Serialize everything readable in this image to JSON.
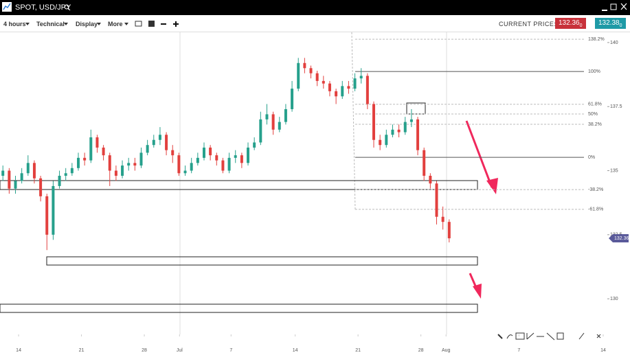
{
  "header": {
    "title": "SPOT, USD/JPY"
  },
  "toolbar": {
    "items": [
      "4 hours",
      "Technical",
      "Display",
      "More"
    ],
    "current_price_label": "CURRENT PRICE:",
    "bid": "132.36",
    "bid_pip": "0",
    "ask": "132.38",
    "ask_pip": "0"
  },
  "chart_data": {
    "type": "candlestick",
    "up_color": "#26a08c",
    "down_color": "#e2403e",
    "x": [
      -1.25,
      -0.75,
      -0.25,
      0.25,
      0.75,
      1.25,
      1.75,
      2.25,
      2.75,
      3.25,
      3.75,
      4.25,
      4.75,
      5.25,
      5.75,
      6.25,
      6.75,
      7.25,
      7.75,
      8.25,
      8.75,
      9.25,
      9.75,
      10.25,
      10.75,
      11.25,
      11.75,
      12.25,
      12.75,
      13.25,
      13.75,
      14.25,
      14.75,
      15.25,
      15.75,
      16.25,
      16.75,
      17.25,
      17.75,
      18.25,
      18.75,
      19.25,
      19.75,
      20.25,
      20.75,
      21.25,
      21.75,
      22.25,
      22.75,
      23.25,
      23.75,
      24.25,
      24.75,
      25.25,
      25.75,
      26.25,
      26.75,
      27.25,
      27.75,
      28.25,
      28.75,
      29.25,
      29.75,
      30.25,
      30.75,
      31.25,
      31.75,
      32.25,
      32.75,
      33.25,
      33.75,
      34.25
    ],
    "open": [
      134.8,
      135.0,
      134.3,
      134.6,
      134.9,
      135.3,
      134.7,
      134.0,
      132.5,
      134.4,
      134.8,
      134.9,
      135.1,
      135.5,
      135.4,
      136.3,
      135.9,
      135.6,
      135.0,
      134.8,
      135.2,
      135.3,
      135.2,
      135.7,
      136.0,
      136.2,
      136.4,
      135.8,
      135.6,
      134.9,
      135.0,
      135.3,
      135.5,
      135.9,
      135.6,
      135.4,
      135.0,
      135.5,
      135.6,
      135.3,
      135.9,
      136.1,
      137.0,
      137.2,
      136.6,
      136.9,
      137.4,
      138.2,
      139.2,
      139.0,
      138.8,
      138.5,
      138.4,
      138.1,
      137.9,
      138.3,
      138.2,
      138.6,
      138.7,
      137.6,
      136.2,
      136.0,
      136.4,
      136.6,
      136.5,
      136.9,
      137.0,
      135.8,
      134.8,
      134.5,
      133.2,
      133.0
    ],
    "high": [
      135.2,
      135.1,
      134.8,
      135.1,
      135.6,
      135.4,
      134.8,
      134.1,
      134.6,
      135.0,
      135.1,
      135.3,
      135.7,
      135.7,
      136.6,
      136.4,
      136.0,
      135.7,
      135.2,
      135.4,
      135.5,
      135.5,
      135.9,
      136.2,
      136.4,
      136.7,
      136.5,
      136.0,
      135.7,
      135.2,
      135.5,
      135.7,
      136.1,
      136.0,
      135.7,
      135.5,
      135.7,
      135.8,
      135.7,
      136.1,
      136.3,
      137.3,
      137.6,
      137.3,
      137.1,
      137.6,
      138.5,
      139.4,
      139.4,
      139.1,
      138.9,
      138.7,
      138.5,
      138.2,
      138.5,
      138.5,
      138.8,
      139.0,
      138.8,
      137.7,
      136.4,
      136.6,
      136.8,
      136.8,
      137.1,
      137.4,
      137.1,
      135.9,
      134.9,
      134.6,
      133.6,
      133.1
    ],
    "low": [
      134.6,
      134.1,
      134.1,
      134.5,
      134.8,
      134.5,
      133.8,
      131.9,
      132.3,
      134.3,
      134.6,
      134.8,
      135.0,
      135.2,
      135.3,
      135.7,
      135.4,
      134.4,
      134.6,
      134.7,
      135.0,
      135.0,
      135.1,
      135.6,
      135.9,
      136.0,
      135.6,
      135.3,
      134.8,
      134.8,
      134.9,
      135.2,
      135.4,
      135.4,
      135.2,
      134.9,
      134.9,
      135.3,
      135.1,
      135.2,
      135.8,
      136.0,
      136.8,
      136.4,
      136.5,
      136.8,
      137.3,
      138.1,
      138.8,
      138.6,
      138.3,
      138.2,
      137.9,
      137.6,
      137.8,
      138.0,
      138.1,
      138.4,
      137.4,
      135.9,
      135.8,
      135.9,
      136.3,
      136.3,
      136.4,
      136.7,
      135.6,
      134.6,
      134.3,
      132.9,
      132.7,
      132.2
    ],
    "close": [
      135.0,
      134.3,
      134.6,
      134.9,
      135.3,
      134.7,
      134.0,
      132.5,
      134.4,
      134.8,
      134.9,
      135.1,
      135.5,
      135.4,
      136.3,
      135.9,
      135.6,
      135.0,
      134.8,
      135.2,
      135.3,
      135.2,
      135.7,
      136.0,
      136.2,
      136.4,
      135.8,
      135.6,
      134.9,
      135.0,
      135.3,
      135.5,
      135.9,
      135.6,
      135.4,
      135.0,
      135.5,
      135.6,
      135.3,
      135.9,
      136.1,
      137.0,
      137.2,
      136.6,
      136.9,
      137.4,
      138.2,
      139.2,
      139.0,
      138.8,
      138.5,
      138.4,
      138.1,
      137.9,
      138.3,
      138.2,
      138.6,
      138.7,
      137.6,
      136.2,
      136.0,
      136.4,
      136.6,
      136.5,
      136.9,
      137.0,
      135.8,
      134.8,
      134.5,
      133.2,
      133.0,
      132.36
    ],
    "xlim": [
      -1.48,
      46.83
    ],
    "xticks": [
      {
        "value": 0,
        "label": "14"
      },
      {
        "value": 5,
        "label": "21"
      },
      {
        "value": 10,
        "label": "28"
      },
      {
        "value": 12.8,
        "label": "Jul"
      },
      {
        "value": 16.9,
        "label": "7"
      },
      {
        "value": 22,
        "label": "14"
      },
      {
        "value": 27,
        "label": "21"
      },
      {
        "value": 32,
        "label": "28"
      },
      {
        "value": 34,
        "label": "Aug"
      },
      {
        "value": 39.8,
        "label": "7"
      },
      {
        "value": 46.5,
        "label": "14"
      }
    ],
    "ylim": [
      128.61,
      140.4
    ],
    "yticks": [
      140,
      137.5,
      135,
      132.5,
      130
    ],
    "grid": false,
    "last_price": 132.36,
    "fib_levels": [
      {
        "label": "138.2%",
        "price": 140.13,
        "dashed": true
      },
      {
        "label": "100%",
        "price": 138.87,
        "dashed": false
      },
      {
        "label": "61.8%",
        "price": 137.59,
        "dashed": true
      },
      {
        "label": "50%",
        "price": 137.21,
        "dashed": true
      },
      {
        "label": "38.2%",
        "price": 136.81,
        "dashed": true
      },
      {
        "label": "0%",
        "price": 135.52,
        "dashed": false
      },
      {
        "label": "-38.2%",
        "price": 134.26,
        "dashed": true
      },
      {
        "label": "-61.8%",
        "price": 133.49,
        "dashed": true
      }
    ]
  }
}
